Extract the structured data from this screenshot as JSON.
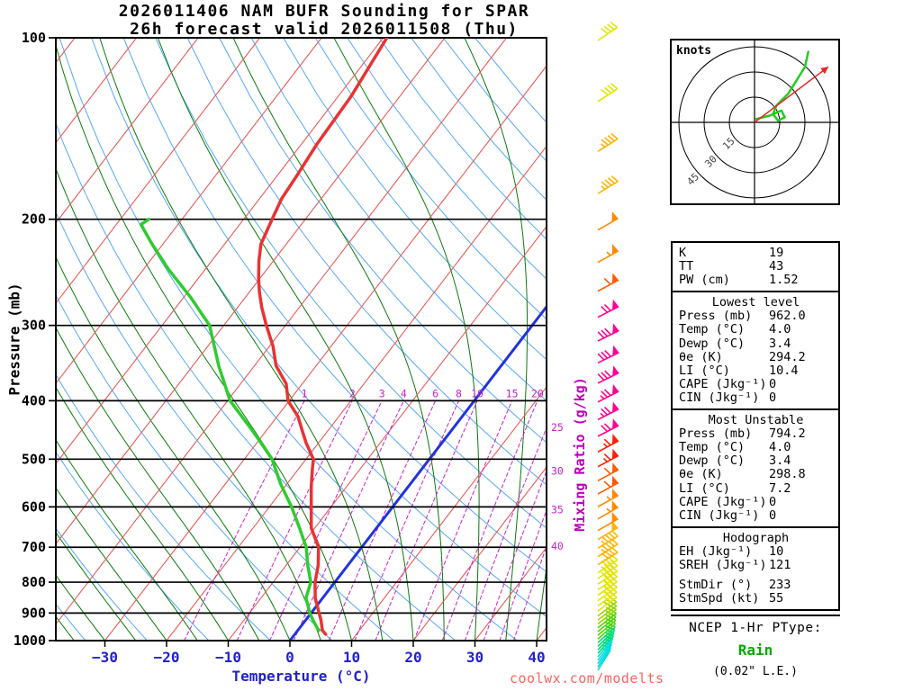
{
  "title": {
    "line1": "2026011406 NAM BUFR Sounding for SPAR",
    "line2": "26h forecast valid 2026011508 (Thu)"
  },
  "axes": {
    "pressure_label": "Pressure (mb)",
    "temperature_label": "Temperature (°C)",
    "mixing_ratio_label": "Mixing Ratio (g/kg)",
    "pressure_ticks_mb": [
      100,
      200,
      300,
      400,
      500,
      600,
      700,
      800,
      900,
      1000
    ],
    "temperature_ticks_c": [
      -30,
      -20,
      -10,
      0,
      10,
      20,
      30,
      40
    ]
  },
  "chart_data": {
    "type": "skew-t log-p sounding",
    "pressure_range_mb": [
      100,
      1000
    ],
    "temperature_axis_range_c": [
      -40,
      45
    ],
    "temperature_profile_c": [
      [
        976,
        5.0
      ],
      [
        962,
        4.0
      ],
      [
        925,
        2.5
      ],
      [
        900,
        1.3
      ],
      [
        850,
        -1.2
      ],
      [
        800,
        -3.2
      ],
      [
        750,
        -4.8
      ],
      [
        700,
        -7.0
      ],
      [
        650,
        -10.6
      ],
      [
        600,
        -13.2
      ],
      [
        554,
        -15.8
      ],
      [
        520,
        -17.7
      ],
      [
        500,
        -18.8
      ],
      [
        470,
        -22.0
      ],
      [
        450,
        -24.0
      ],
      [
        425,
        -26.6
      ],
      [
        400,
        -30.2
      ],
      [
        375,
        -32.6
      ],
      [
        350,
        -36.5
      ],
      [
        325,
        -39.4
      ],
      [
        300,
        -43.1
      ],
      [
        280,
        -46.1
      ],
      [
        264,
        -48.4
      ],
      [
        250,
        -50.3
      ],
      [
        234,
        -52.4
      ],
      [
        220,
        -54.1
      ],
      [
        200,
        -55.4
      ],
      [
        185,
        -56.4
      ],
      [
        170,
        -56.8
      ],
      [
        150,
        -57.5
      ],
      [
        125,
        -57.9
      ],
      [
        100,
        -59.4
      ]
    ],
    "dewpoint_profile_c": [
      [
        962,
        3.4
      ],
      [
        925,
        1.2
      ],
      [
        900,
        -0.2
      ],
      [
        850,
        -2.7
      ],
      [
        800,
        -3.9
      ],
      [
        750,
        -6.5
      ],
      [
        700,
        -9.0
      ],
      [
        650,
        -12.5
      ],
      [
        600,
        -16.4
      ],
      [
        550,
        -21.0
      ],
      [
        500,
        -25.5
      ],
      [
        450,
        -32.0
      ],
      [
        400,
        -39.6
      ],
      [
        350,
        -45.8
      ],
      [
        300,
        -52.3
      ],
      [
        269,
        -59.0
      ],
      [
        242,
        -66.0
      ],
      [
        219,
        -72.0
      ],
      [
        204,
        -76.0
      ],
      [
        200,
        -75.4
      ]
    ],
    "freezing_isotherm_c": 0,
    "grid": {
      "isotherm_min_c": -120,
      "isotherm_max_c": 40,
      "isotherm_step_c": 10,
      "isotherm_color": "#e85a5a",
      "dry_adiabat_theta_k": {
        "min": 240,
        "max": 440,
        "step": 10
      },
      "dry_adiabat_color": "#55a8f5",
      "moist_adiabat_t1000_c": {
        "min": -55,
        "max": 50,
        "step": 5
      },
      "moist_adiabat_color": "#0a7a0a",
      "mixing_ratio_values_gkg": [
        1,
        2,
        3,
        4,
        6,
        8,
        10,
        15,
        20,
        25,
        30,
        35,
        40
      ],
      "mixing_ratio_color": "#c822c8"
    },
    "wind_barbs": {
      "units": "kt",
      "speed_colors": [
        [
          14,
          "#00dcdc"
        ],
        [
          18,
          "#00dc6e"
        ],
        [
          22,
          "#50d800"
        ],
        [
          28,
          "#9cd800"
        ],
        [
          40,
          "#e4e400"
        ],
        [
          48,
          "#ffb400"
        ],
        [
          56,
          "#ff8a00"
        ],
        [
          62,
          "#ff5a00"
        ],
        [
          68,
          "#ff2000"
        ],
        [
          200,
          "#ff0096"
        ]
      ],
      "levels_p_spd_dir": [
        [
          1000,
          12,
          212
        ],
        [
          988,
          12,
          214
        ],
        [
          976,
          13,
          216
        ],
        [
          964,
          14,
          218
        ],
        [
          952,
          14,
          220
        ],
        [
          940,
          15,
          222
        ],
        [
          928,
          16,
          224
        ],
        [
          916,
          17,
          226
        ],
        [
          904,
          18,
          228
        ],
        [
          892,
          19,
          229
        ],
        [
          880,
          20,
          230
        ],
        [
          868,
          21,
          231
        ],
        [
          856,
          22,
          232
        ],
        [
          844,
          24,
          232
        ],
        [
          832,
          26,
          233
        ],
        [
          820,
          28,
          233
        ],
        [
          805,
          30,
          234
        ],
        [
          790,
          32,
          234
        ],
        [
          775,
          34,
          235
        ],
        [
          760,
          36,
          235
        ],
        [
          745,
          37,
          236
        ],
        [
          730,
          38,
          236
        ],
        [
          715,
          39,
          237
        ],
        [
          700,
          40,
          237
        ],
        [
          680,
          42,
          238
        ],
        [
          660,
          44,
          238
        ],
        [
          640,
          46,
          239
        ],
        [
          620,
          48,
          239
        ],
        [
          600,
          50,
          240
        ],
        [
          575,
          53,
          240
        ],
        [
          550,
          55,
          241
        ],
        [
          525,
          58,
          241
        ],
        [
          500,
          60,
          242
        ],
        [
          475,
          63,
          242
        ],
        [
          450,
          66,
          242
        ],
        [
          425,
          70,
          243
        ],
        [
          400,
          73,
          243
        ],
        [
          375,
          76,
          243
        ],
        [
          350,
          78,
          244
        ],
        [
          325,
          80,
          244
        ],
        [
          300,
          78,
          244
        ],
        [
          275,
          70,
          243
        ],
        [
          250,
          62,
          242
        ],
        [
          225,
          56,
          241
        ],
        [
          200,
          52,
          240
        ],
        [
          175,
          47,
          239
        ],
        [
          150,
          44,
          238
        ],
        [
          125,
          40,
          237
        ],
        [
          100,
          38,
          236
        ]
      ]
    },
    "hodograph": {
      "label": "knots",
      "rings_kt": [
        15,
        30,
        45
      ],
      "trace_uv_kt": [
        [
          1,
          2
        ],
        [
          9,
          4
        ],
        [
          16,
          7
        ],
        [
          18,
          3
        ],
        [
          14,
          1
        ],
        [
          11,
          5
        ],
        [
          13,
          10
        ],
        [
          20,
          17
        ],
        [
          25,
          25
        ],
        [
          30,
          33
        ],
        [
          32,
          42
        ]
      ],
      "storm_motion": {
        "dir_deg": 233,
        "speed_kt": 55
      }
    }
  },
  "panel": {
    "sections": [
      {
        "title": "",
        "rows": [
          [
            "K",
            "19"
          ],
          [
            "TT",
            "43"
          ],
          [
            "PW (cm)",
            "1.52"
          ]
        ]
      },
      {
        "title": "Lowest level",
        "rows": [
          [
            "Press (mb)",
            "962.0"
          ],
          [
            "Temp (°C)",
            "4.0"
          ],
          [
            "Dewp (°C)",
            "3.4"
          ],
          [
            "θe (K)",
            "294.2"
          ],
          [
            "LI (°C)",
            "10.4"
          ],
          [
            "CAPE (Jkg⁻¹)",
            "0"
          ],
          [
            "CIN (Jkg⁻¹)",
            "0"
          ]
        ]
      },
      {
        "title": "Most Unstable",
        "rows": [
          [
            "Press (mb)",
            "794.2"
          ],
          [
            "Temp (°C)",
            "4.0"
          ],
          [
            "Dewp (°C)",
            "3.4"
          ],
          [
            "θe (K)",
            "298.8"
          ],
          [
            "LI (°C)",
            "7.2"
          ],
          [
            "CAPE (Jkg⁻¹)",
            "0"
          ],
          [
            "CIN (Jkg⁻¹)",
            "0"
          ]
        ]
      },
      {
        "title": "Hodograph",
        "rows": [
          [
            "EH (Jkg⁻¹)",
            "10"
          ],
          [
            "SREH (Jkg⁻¹)",
            "121"
          ],
          null,
          [
            "StmDir (°)",
            "233"
          ],
          [
            "StmSpd (kt)",
            "55"
          ]
        ]
      }
    ]
  },
  "ptype": {
    "header": "NCEP 1-Hr PType:",
    "value": "Rain",
    "value_color": "#00aa00",
    "amount": "(0.02\" L.E.)"
  },
  "watermark": "coolwx.com/modelts",
  "colors": {
    "temperature_curve": "#e83333",
    "dewpoint_curve": "#2ecc2e",
    "freezing_line": "#2233dd",
    "axis_text_blue": "#2222cc",
    "hodo_trace": "#22cc22",
    "storm_arrow": "#ee2222"
  }
}
